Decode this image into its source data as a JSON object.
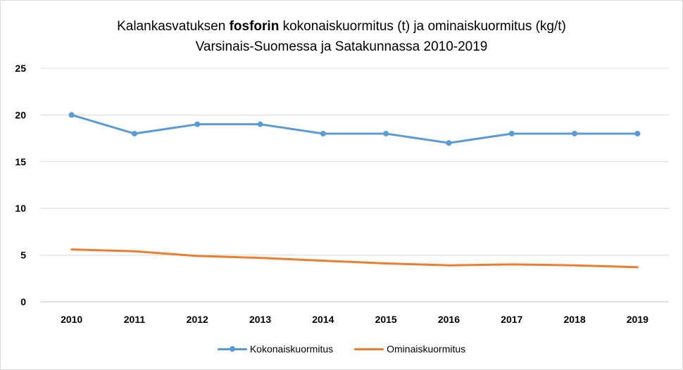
{
  "chart_data": {
    "type": "line",
    "title": {
      "line1_before": "Kalankasvatuksen ",
      "line1_bold": "fosforin",
      "line1_after": " kokonaiskuormitus  (t) ja ominaiskuormitus (kg/t)",
      "line2": "Varsinais-Suomessa ja Satakunnassa 2010-2019"
    },
    "xlabel": "",
    "ylabel": "",
    "categories": [
      "2010",
      "2011",
      "2012",
      "2013",
      "2014",
      "2015",
      "2016",
      "2017",
      "2018",
      "2019"
    ],
    "ylim": [
      0,
      25
    ],
    "yticks": [
      0,
      5,
      10,
      15,
      20,
      25
    ],
    "grid": true,
    "legend_position": "bottom",
    "series": [
      {
        "name": "Kokonaiskuormitus",
        "color": "#5b9bd5",
        "markers": true,
        "values": [
          20,
          18,
          19,
          19,
          18,
          18,
          17,
          18,
          18,
          18
        ]
      },
      {
        "name": "Ominaiskuormitus",
        "color": "#ed7d31",
        "markers": false,
        "values": [
          5.6,
          5.4,
          4.9,
          4.7,
          4.4,
          4.1,
          3.9,
          4.0,
          3.9,
          3.7
        ]
      }
    ]
  }
}
